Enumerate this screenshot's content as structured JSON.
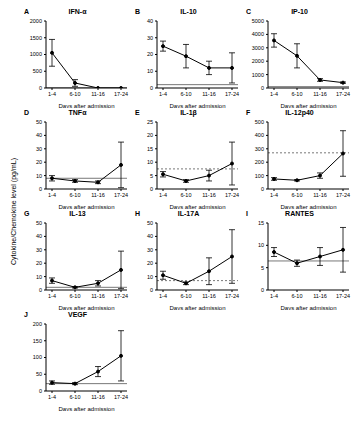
{
  "ylabel": "Cytokine/Chemokine level (pg/mL)",
  "chart_data": [
    {
      "type": "line",
      "panel": "A",
      "title": "IFN-α",
      "x_label": "Days after admission",
      "categories": [
        "1-4",
        "6-10",
        "11-16",
        "17-24"
      ],
      "series": [
        {
          "color": "#000000",
          "values": [
            1050,
            150,
            0,
            0
          ],
          "errors": [
            400,
            100,
            0,
            0
          ]
        }
      ],
      "ylim": [
        0,
        2000
      ],
      "yticks": [
        0,
        500,
        1000,
        1500,
        2000
      ],
      "reference": {
        "value": 5,
        "line_style": "solid",
        "color": "#555555"
      }
    },
    {
      "type": "line",
      "panel": "B",
      "title": "IL-10",
      "x_label": "Days after admission",
      "categories": [
        "1-4",
        "6-10",
        "11-16",
        "17-24"
      ],
      "series": [
        {
          "color": "#000000",
          "values": [
            25,
            19,
            12,
            12
          ],
          "errors": [
            3,
            7,
            4,
            9
          ]
        }
      ],
      "ylim": [
        0,
        40
      ],
      "yticks": [
        0,
        10,
        20,
        30,
        40
      ],
      "reference": {
        "value": 2,
        "line_style": "solid",
        "color": "#555555"
      }
    },
    {
      "type": "line",
      "panel": "C",
      "title": "IP-10",
      "x_label": "Days after admission",
      "categories": [
        "1-4",
        "6-10",
        "11-16",
        "17-24"
      ],
      "series": [
        {
          "color": "#000000",
          "values": [
            3550,
            2400,
            600,
            400
          ],
          "errors": [
            500,
            900,
            100,
            50
          ]
        }
      ],
      "ylim": [
        0,
        5000
      ],
      "yticks": [
        0,
        1000,
        2000,
        3000,
        4000,
        5000
      ],
      "reference": {
        "value": 100,
        "line_style": "solid",
        "color": "#555555"
      }
    },
    {
      "type": "line",
      "panel": "D",
      "title": "TNFα",
      "x_label": "Days after admission",
      "categories": [
        "1-4",
        "6-10",
        "11-16",
        "17-24"
      ],
      "series": [
        {
          "color": "#000000",
          "values": [
            8,
            6,
            5,
            18
          ],
          "errors": [
            2,
            1,
            1,
            17
          ]
        }
      ],
      "ylim": [
        0,
        50
      ],
      "yticks": [
        0,
        10,
        20,
        30,
        40,
        50
      ],
      "reference": {
        "value": 8,
        "line_style": "solid",
        "color": "#555555"
      }
    },
    {
      "type": "line",
      "panel": "E",
      "title": "IL-1β",
      "x_label": "Days after admission",
      "categories": [
        "1-4",
        "6-10",
        "11-16",
        "17-24"
      ],
      "series": [
        {
          "color": "#000000",
          "values": [
            5.5,
            3,
            5,
            9.5
          ],
          "errors": [
            1,
            0.5,
            2,
            8
          ]
        }
      ],
      "ylim": [
        0,
        25
      ],
      "yticks": [
        0,
        5,
        10,
        15,
        20,
        25
      ],
      "reference": {
        "value": 7.5,
        "line_style": "dashed",
        "color": "#555555"
      }
    },
    {
      "type": "line",
      "panel": "F",
      "title": "IL-12p40",
      "x_label": "Days after admission",
      "categories": [
        "1-4",
        "6-10",
        "11-16",
        "17-24"
      ],
      "series": [
        {
          "color": "#000000",
          "values": [
            75,
            65,
            100,
            265
          ],
          "errors": [
            10,
            5,
            20,
            170
          ]
        }
      ],
      "ylim": [
        0,
        500
      ],
      "yticks": [
        0,
        100,
        200,
        300,
        400,
        500
      ],
      "reference": {
        "value": 270,
        "line_style": "dashed",
        "color": "#555555"
      }
    },
    {
      "type": "line",
      "panel": "G",
      "title": "IL-13",
      "x_label": "Days after admission",
      "categories": [
        "1-4",
        "6-10",
        "11-16",
        "17-24"
      ],
      "series": [
        {
          "color": "#000000",
          "values": [
            7,
            2,
            5,
            15
          ],
          "errors": [
            2,
            0.5,
            2,
            14
          ]
        }
      ],
      "ylim": [
        0,
        50
      ],
      "yticks": [
        0,
        10,
        20,
        30,
        40,
        50
      ],
      "reference": {
        "value": 2,
        "line_style": "solid",
        "color": "#555555"
      }
    },
    {
      "type": "line",
      "panel": "H",
      "title": "IL-17A",
      "x_label": "Days after admission",
      "categories": [
        "1-4",
        "6-10",
        "11-16",
        "17-24"
      ],
      "series": [
        {
          "color": "#000000",
          "values": [
            11,
            5,
            14,
            25
          ],
          "errors": [
            3,
            1,
            10,
            20
          ]
        }
      ],
      "ylim": [
        0,
        50
      ],
      "yticks": [
        0,
        10,
        20,
        30,
        40,
        50
      ],
      "reference": {
        "value": 7,
        "line_style": "dashed",
        "color": "#555555"
      }
    },
    {
      "type": "line",
      "panel": "I",
      "title": "RANTES",
      "x_label": "Days after admission",
      "categories": [
        "1-4",
        "6-10",
        "11-16",
        "17-24"
      ],
      "series": [
        {
          "color": "#000000",
          "values": [
            8.5,
            6,
            7.5,
            9
          ],
          "errors": [
            1,
            0.7,
            2,
            5
          ]
        }
      ],
      "ylim": [
        0,
        15
      ],
      "yticks": [
        0,
        5,
        10,
        15
      ],
      "reference": {
        "value": 6.5,
        "line_style": "solid",
        "color": "#555555"
      }
    },
    {
      "type": "line",
      "panel": "J",
      "title": "VEGF",
      "x_label": "Days after admission",
      "categories": [
        "1-4",
        "6-10",
        "11-16",
        "17-24"
      ],
      "series": [
        {
          "color": "#000000",
          "values": [
            25,
            22,
            58,
            105
          ],
          "errors": [
            5,
            3,
            15,
            75
          ]
        }
      ],
      "ylim": [
        0,
        200
      ],
      "yticks": [
        0,
        50,
        100,
        150,
        200
      ],
      "reference": {
        "value": 22,
        "line_style": "solid",
        "color": "#555555"
      }
    }
  ]
}
